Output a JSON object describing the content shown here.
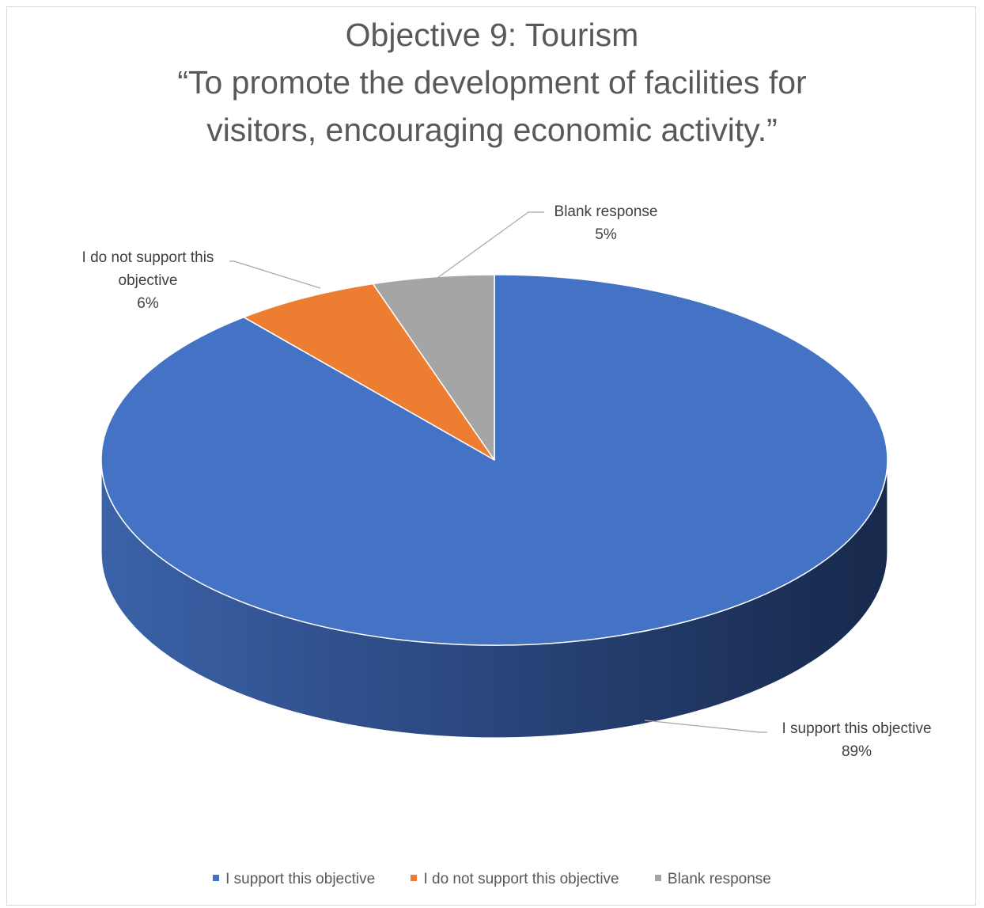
{
  "chart_data": {
    "type": "pie",
    "title_lines": [
      "Objective 9: Tourism",
      "“To promote the development of facilities for",
      "visitors, encouraging economic activity.”"
    ],
    "categories": [
      "I support this objective",
      "I do not support this objective",
      "Blank response"
    ],
    "values": [
      89,
      6,
      5
    ],
    "value_labels": [
      "89%",
      "6%",
      "5%"
    ],
    "colors": [
      "#4472C4",
      "#ED7D31",
      "#A5A5A5"
    ],
    "side_colors": [
      "#2E4F8A",
      "#A8561F",
      "#757575"
    ],
    "data_labels": [
      {
        "lines": [
          "I support this objective"
        ],
        "value": "89%"
      },
      {
        "lines": [
          "I do not support this",
          "objective"
        ],
        "value": "6%"
      },
      {
        "lines": [
          "Blank response"
        ],
        "value": "5%"
      }
    ],
    "legend_position": "bottom"
  }
}
